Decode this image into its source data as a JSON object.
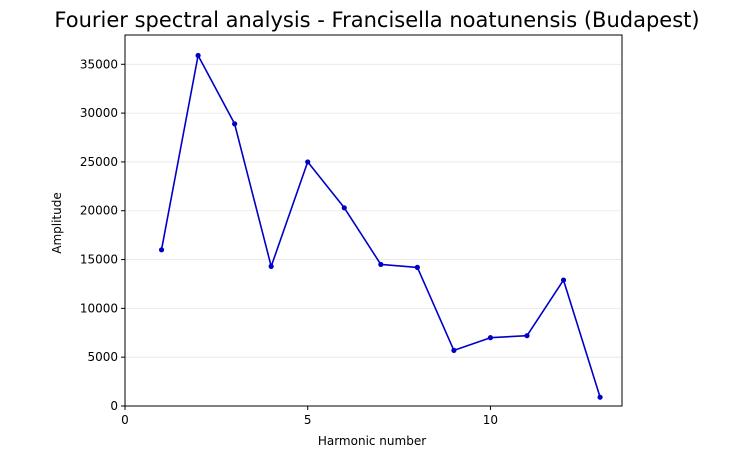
{
  "chart_data": {
    "type": "line",
    "title": "Fourier spectral analysis - Francisella noatunensis (Budapest)",
    "xlabel": "Harmonic number",
    "ylabel": "Amplitude",
    "x": [
      1,
      2,
      3,
      4,
      5,
      6,
      7,
      8,
      9,
      10,
      11,
      12,
      13
    ],
    "series": [
      {
        "values": [
          16000,
          35900,
          28900,
          14300,
          25000,
          20300,
          14500,
          14200,
          5700,
          7000,
          7200,
          12900,
          900
        ],
        "color": "#0000c8"
      }
    ],
    "xlim": [
      0,
      13.6
    ],
    "ylim": [
      0,
      38000
    ],
    "xticks": [
      0,
      5,
      10
    ],
    "xtick_labels": [
      "0",
      "5",
      "10"
    ],
    "yticks": [
      0,
      5000,
      10000,
      15000,
      20000,
      25000,
      30000,
      35000
    ],
    "ytick_labels": [
      "0",
      "5000",
      "10000",
      "15000",
      "20000",
      "25000",
      "30000",
      "35000"
    ],
    "grid": "y-only",
    "legend": "none"
  }
}
